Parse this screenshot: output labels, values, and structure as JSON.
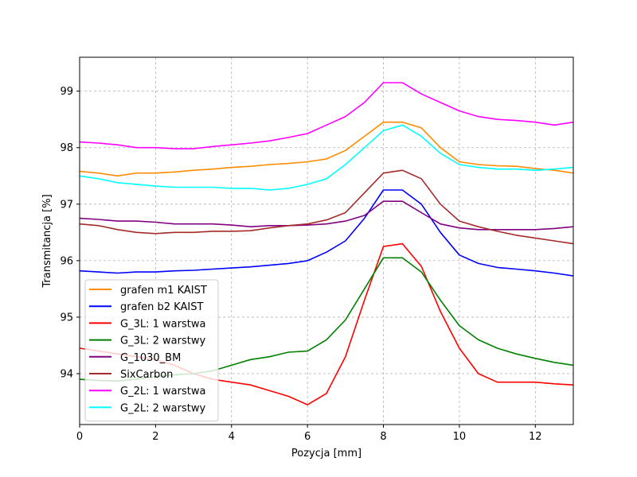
{
  "chart_data": {
    "type": "line",
    "xlabel": "Pozycja [mm]",
    "ylabel": "Transmitancja [%]",
    "xlim": [
      0,
      13
    ],
    "ylim": [
      93.1,
      99.6
    ],
    "xticks": [
      0,
      2,
      4,
      6,
      8,
      10,
      12
    ],
    "yticks": [
      94,
      95,
      96,
      97,
      98,
      99
    ],
    "grid": true,
    "legend_position": "lower-left",
    "x": [
      0,
      0.5,
      1,
      1.5,
      2,
      2.5,
      3,
      3.5,
      4,
      4.5,
      5,
      5.5,
      6,
      6.5,
      7,
      7.5,
      8,
      8.5,
      9,
      9.5,
      10,
      10.5,
      11,
      11.5,
      12,
      12.5,
      13
    ],
    "series": [
      {
        "name": "grafen m1 KAIST",
        "color": "#ff8c00",
        "values": [
          97.58,
          97.55,
          97.5,
          97.55,
          97.55,
          97.57,
          97.6,
          97.62,
          97.65,
          97.67,
          97.7,
          97.72,
          97.75,
          97.8,
          97.95,
          98.2,
          98.45,
          98.45,
          98.35,
          98.0,
          97.75,
          97.7,
          97.68,
          97.67,
          97.63,
          97.6,
          97.55
        ]
      },
      {
        "name": "grafen b2 KAIST",
        "color": "#0000ff",
        "values": [
          95.82,
          95.8,
          95.78,
          95.8,
          95.8,
          95.82,
          95.83,
          95.85,
          95.87,
          95.89,
          95.92,
          95.95,
          96.0,
          96.15,
          96.35,
          96.75,
          97.25,
          97.25,
          97.0,
          96.5,
          96.1,
          95.95,
          95.88,
          95.85,
          95.82,
          95.78,
          95.73
        ]
      },
      {
        "name": "G_3L: 1 warstwa",
        "color": "#ff0000",
        "values": [
          94.45,
          94.4,
          94.35,
          94.3,
          94.25,
          94.15,
          94.0,
          93.9,
          93.85,
          93.8,
          93.7,
          93.6,
          93.45,
          93.65,
          94.3,
          95.3,
          96.25,
          96.3,
          95.9,
          95.1,
          94.45,
          94.0,
          93.85,
          93.85,
          93.85,
          93.82,
          93.8
        ]
      },
      {
        "name": "G_3L: 2 warstwy",
        "color": "#008000",
        "values": [
          93.9,
          93.88,
          93.87,
          93.9,
          93.95,
          93.98,
          94.0,
          94.05,
          94.15,
          94.25,
          94.3,
          94.38,
          94.4,
          94.6,
          94.95,
          95.5,
          96.05,
          96.05,
          95.8,
          95.3,
          94.85,
          94.6,
          94.45,
          94.35,
          94.27,
          94.2,
          94.15
        ]
      },
      {
        "name": "G_1030_BM",
        "color": "#800080",
        "values": [
          96.75,
          96.73,
          96.7,
          96.7,
          96.68,
          96.65,
          96.65,
          96.65,
          96.63,
          96.6,
          96.62,
          96.62,
          96.63,
          96.65,
          96.7,
          96.8,
          97.05,
          97.05,
          96.85,
          96.65,
          96.58,
          96.55,
          96.55,
          96.55,
          96.55,
          96.57,
          96.6
        ]
      },
      {
        "name": "SixCarbon",
        "color": "#a52a2a",
        "values": [
          96.65,
          96.62,
          96.55,
          96.5,
          96.48,
          96.5,
          96.5,
          96.52,
          96.52,
          96.53,
          96.58,
          96.62,
          96.65,
          96.72,
          96.85,
          97.2,
          97.55,
          97.6,
          97.45,
          97.0,
          96.7,
          96.6,
          96.52,
          96.45,
          96.4,
          96.35,
          96.3
        ]
      },
      {
        "name": "G_2L: 1 warstwa",
        "color": "#ff00ff",
        "values": [
          98.1,
          98.08,
          98.05,
          98.0,
          98.0,
          97.98,
          97.98,
          98.02,
          98.05,
          98.08,
          98.12,
          98.18,
          98.25,
          98.4,
          98.55,
          98.8,
          99.15,
          99.15,
          98.95,
          98.8,
          98.65,
          98.55,
          98.5,
          98.48,
          98.45,
          98.4,
          98.45
        ]
      },
      {
        "name": "G_2L: 2 warstwy",
        "color": "#00ffff",
        "values": [
          97.5,
          97.45,
          97.38,
          97.35,
          97.32,
          97.3,
          97.3,
          97.3,
          97.28,
          97.28,
          97.25,
          97.28,
          97.35,
          97.45,
          97.7,
          98.0,
          98.3,
          98.4,
          98.2,
          97.9,
          97.7,
          97.65,
          97.62,
          97.62,
          97.6,
          97.62,
          97.65
        ]
      }
    ]
  }
}
